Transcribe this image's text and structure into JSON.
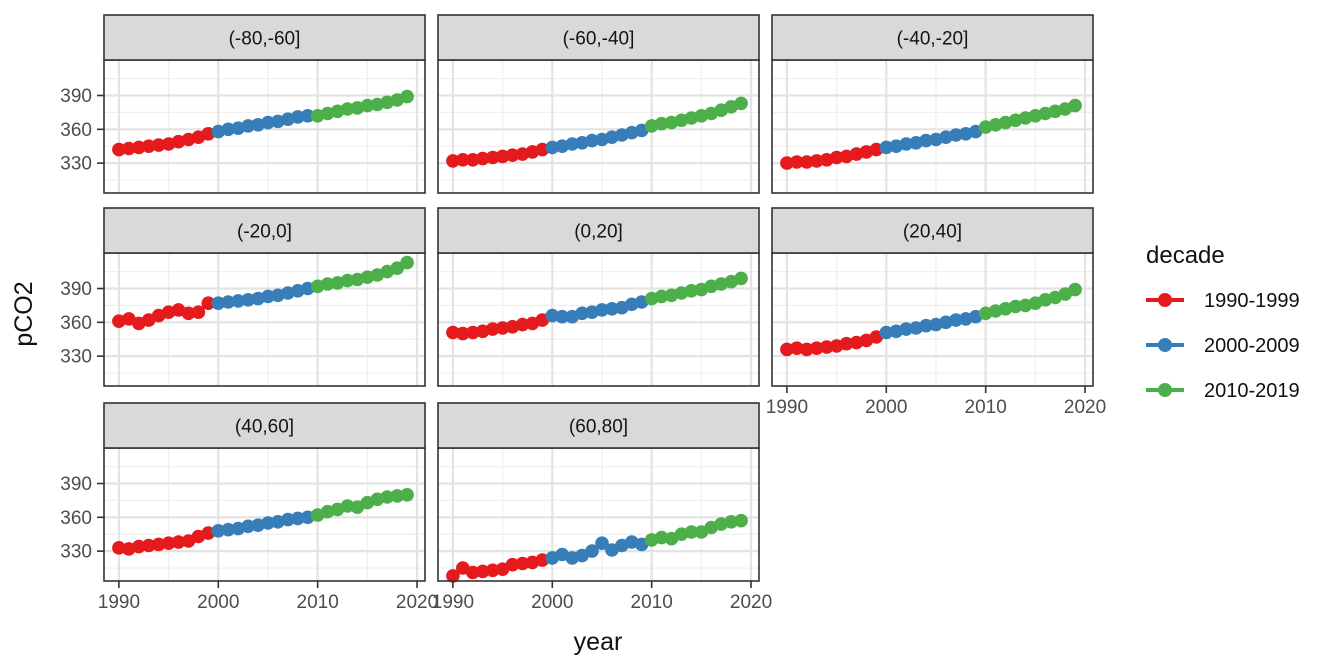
{
  "chart_data": {
    "type": "scatter",
    "geom": "point+line",
    "title": "",
    "xlabel": "year",
    "ylabel": "pCO2",
    "legend_position": "right",
    "grid": true,
    "xlim": [
      1988.5,
      2020.8
    ],
    "ylim": [
      303.5,
      421.5
    ],
    "x_ticks": [
      1990,
      2000,
      2010,
      2020
    ],
    "y_ticks": [
      330,
      360,
      390
    ],
    "x_minor": [
      1995,
      2005,
      2015
    ],
    "y_minor": [
      315,
      345,
      375,
      405
    ],
    "years": [
      1990,
      1991,
      1992,
      1993,
      1994,
      1995,
      1996,
      1997,
      1998,
      1999,
      2000,
      2001,
      2002,
      2003,
      2004,
      2005,
      2006,
      2007,
      2008,
      2009,
      2010,
      2011,
      2012,
      2013,
      2014,
      2015,
      2016,
      2017,
      2018,
      2019
    ],
    "legend": {
      "title": "decade",
      "entries": [
        {
          "label": "1990-1999",
          "color": "#e41a1c",
          "from": 1990,
          "to": 1999
        },
        {
          "label": "2000-2009",
          "color": "#377eb8",
          "from": 2000,
          "to": 2009
        },
        {
          "label": "2010-2019",
          "color": "#4daf4a",
          "from": 2010,
          "to": 2019
        }
      ]
    },
    "facets": [
      {
        "label": "(-80,-60]",
        "values": [
          342,
          343,
          344,
          345,
          346,
          347,
          349,
          351,
          353,
          356,
          358,
          360,
          361,
          363,
          364,
          366,
          367,
          369,
          371,
          372,
          372,
          374,
          376,
          378,
          379,
          381,
          382,
          384,
          386,
          389
        ]
      },
      {
        "label": "(-60,-40]",
        "values": [
          332,
          333,
          333,
          334,
          335,
          336,
          337,
          338,
          340,
          342,
          344,
          345,
          347,
          348,
          350,
          351,
          353,
          355,
          357,
          359,
          363,
          365,
          366,
          368,
          370,
          372,
          374,
          377,
          380,
          383
        ]
      },
      {
        "label": "(-40,-20]",
        "values": [
          330,
          331,
          331,
          332,
          333,
          335,
          336,
          338,
          340,
          342,
          344,
          345,
          347,
          348,
          350,
          351,
          353,
          355,
          356,
          358,
          362,
          364,
          366,
          368,
          370,
          372,
          374,
          376,
          378,
          381
        ]
      },
      {
        "label": "(-20,0]",
        "values": [
          361,
          363,
          359,
          362,
          366,
          369,
          371,
          368,
          369,
          377,
          377,
          378,
          379,
          380,
          381,
          383,
          384,
          386,
          388,
          390,
          392,
          394,
          395,
          397,
          398,
          400,
          402,
          405,
          408,
          413
        ]
      },
      {
        "label": "(0,20]",
        "values": [
          351,
          350,
          351,
          352,
          354,
          355,
          356,
          358,
          359,
          362,
          366,
          365,
          365,
          368,
          369,
          371,
          372,
          373,
          376,
          378,
          381,
          383,
          384,
          386,
          388,
          389,
          392,
          394,
          396,
          399
        ]
      },
      {
        "label": "(20,40]",
        "values": [
          336,
          337,
          336,
          337,
          338,
          339,
          341,
          342,
          344,
          347,
          351,
          352,
          354,
          355,
          357,
          358,
          360,
          362,
          363,
          365,
          368,
          370,
          372,
          374,
          375,
          377,
          380,
          382,
          385,
          389
        ]
      },
      {
        "label": "(40,60]",
        "values": [
          333,
          332,
          334,
          335,
          336,
          337,
          338,
          339,
          343,
          346,
          348,
          349,
          350,
          352,
          353,
          355,
          356,
          358,
          359,
          360,
          362,
          365,
          367,
          370,
          369,
          373,
          376,
          378,
          379,
          380
        ]
      },
      {
        "label": "(60,80]",
        "values": [
          308,
          315,
          311,
          312,
          313,
          314,
          318,
          319,
          320,
          322,
          324,
          327,
          324,
          326,
          330,
          337,
          331,
          335,
          338,
          336,
          340,
          342,
          341,
          345,
          347,
          347,
          351,
          354,
          356,
          357
        ]
      }
    ],
    "colors": {
      "decade_1990s": "#e41a1c",
      "decade_2000s": "#377eb8",
      "decade_2010s": "#4daf4a"
    }
  }
}
